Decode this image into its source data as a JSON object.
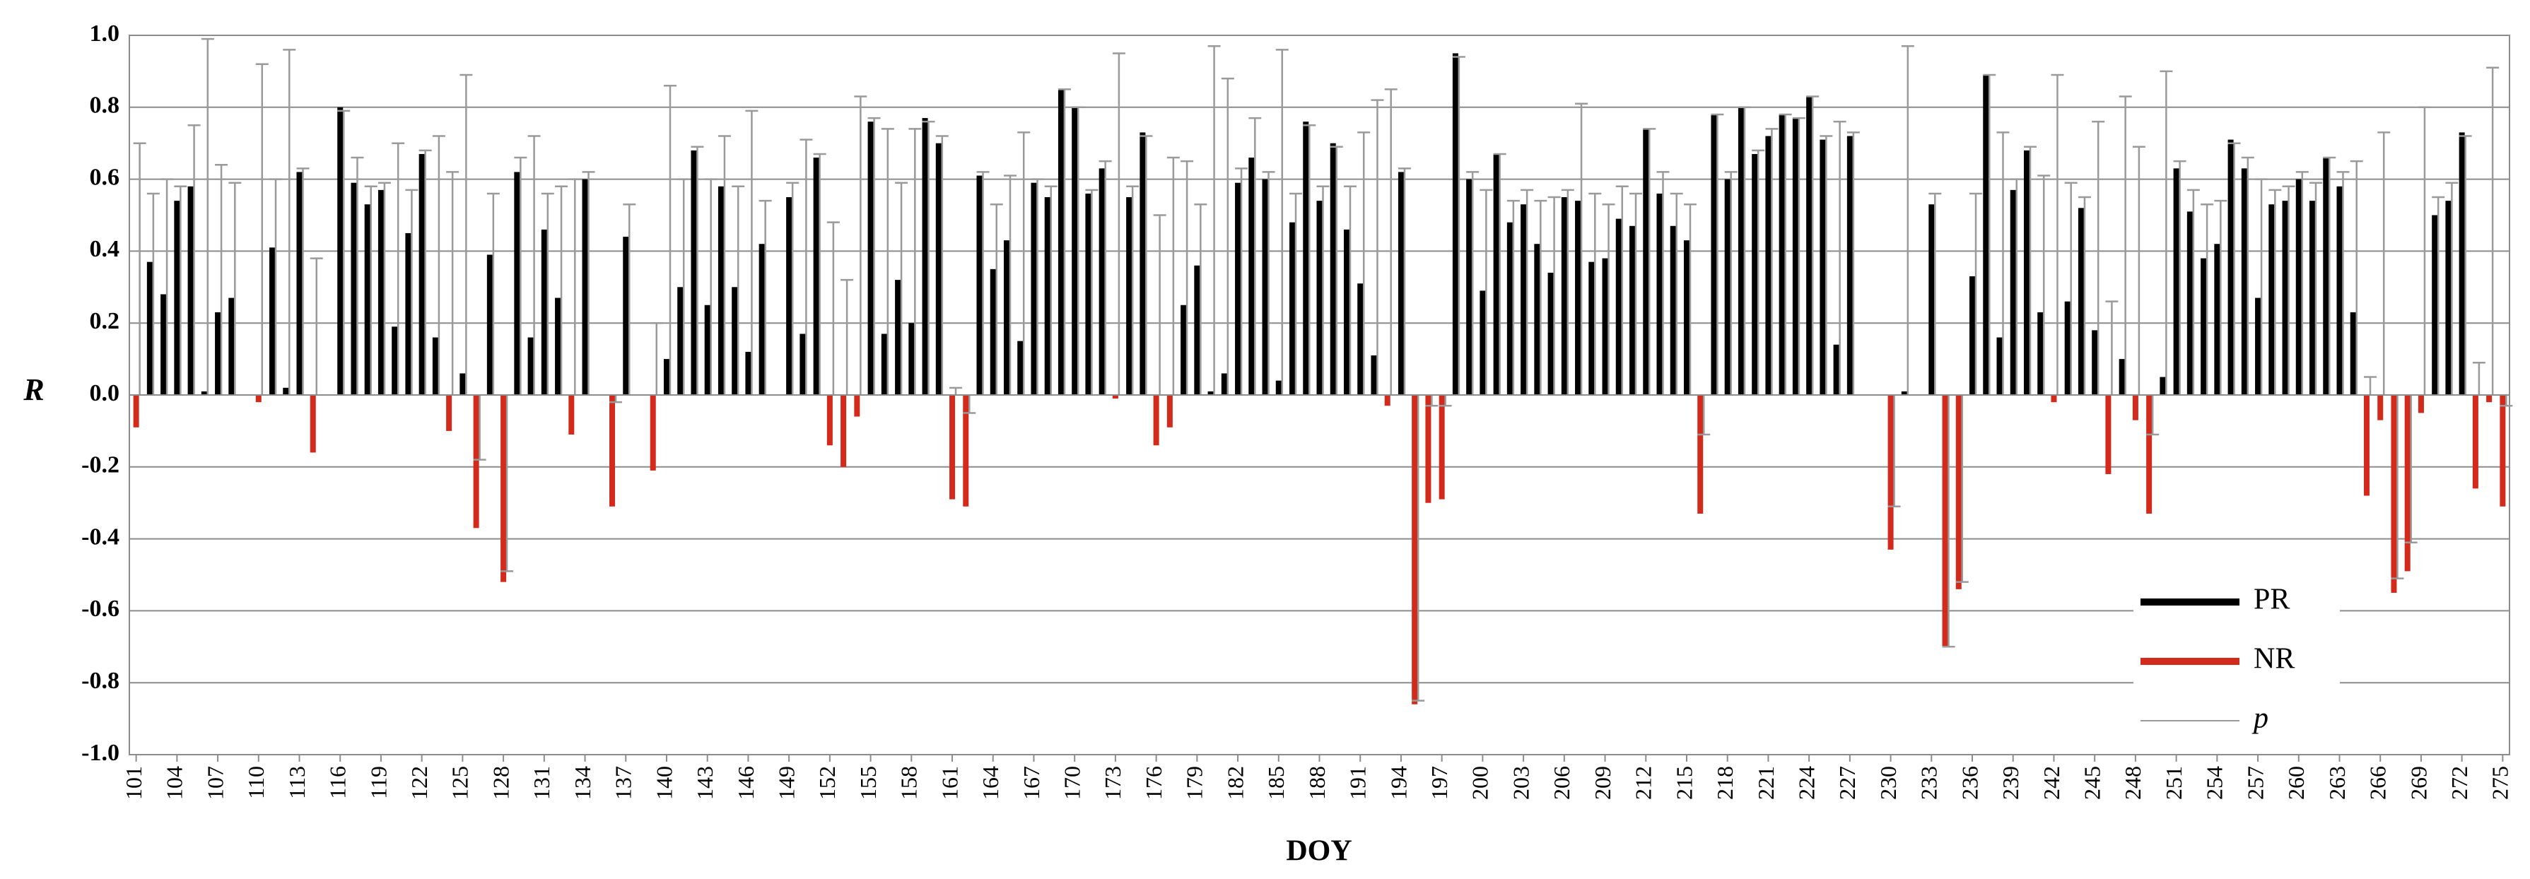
{
  "chart_data": {
    "type": "bar",
    "x_label": "DOY",
    "y_label": "R",
    "x": [
      101,
      102,
      103,
      104,
      105,
      106,
      107,
      108,
      109,
      110,
      111,
      112,
      113,
      114,
      115,
      116,
      117,
      118,
      119,
      120,
      121,
      122,
      123,
      124,
      125,
      126,
      127,
      128,
      129,
      130,
      131,
      132,
      133,
      134,
      135,
      136,
      137,
      138,
      139,
      140,
      141,
      142,
      143,
      144,
      145,
      146,
      147,
      148,
      149,
      150,
      151,
      152,
      153,
      154,
      155,
      156,
      157,
      158,
      159,
      160,
      161,
      162,
      163,
      164,
      165,
      166,
      167,
      168,
      169,
      170,
      171,
      172,
      173,
      174,
      175,
      176,
      177,
      178,
      179,
      180,
      181,
      182,
      183,
      184,
      185,
      186,
      187,
      188,
      189,
      190,
      191,
      192,
      193,
      194,
      195,
      196,
      197,
      198,
      199,
      200,
      201,
      202,
      203,
      204,
      205,
      206,
      207,
      208,
      209,
      210,
      211,
      212,
      213,
      214,
      215,
      216,
      217,
      218,
      219,
      220,
      221,
      222,
      223,
      224,
      225,
      226,
      227,
      228,
      229,
      230,
      231,
      232,
      233,
      234,
      235,
      236,
      237,
      238,
      239,
      240,
      241,
      242,
      243,
      244,
      245,
      246,
      247,
      248,
      249,
      250,
      251,
      252,
      253,
      254,
      255,
      256,
      257,
      258,
      259,
      260,
      261,
      262,
      263,
      264,
      265,
      266,
      267,
      268,
      269,
      270,
      271,
      272,
      273,
      274,
      275
    ],
    "xlim": [
      100.5,
      275.5
    ],
    "xticks": [
      101,
      104,
      107,
      110,
      113,
      116,
      119,
      122,
      125,
      128,
      131,
      134,
      137,
      140,
      143,
      146,
      149,
      152,
      155,
      158,
      161,
      164,
      167,
      170,
      173,
      176,
      179,
      182,
      185,
      188,
      191,
      194,
      197,
      200,
      203,
      206,
      209,
      212,
      215,
      218,
      221,
      224,
      227,
      230,
      233,
      236,
      239,
      242,
      245,
      248,
      251,
      254,
      257,
      260,
      263,
      266,
      269,
      272,
      275
    ],
    "ylim": [
      -1,
      1
    ],
    "yticks": [
      {
        "value": 1,
        "label": "1.0"
      },
      0.8,
      0.6,
      0.4,
      0.2,
      {
        "value": 0,
        "label": "0.0"
      },
      -0.2,
      -0.4,
      -0.6,
      -0.8,
      {
        "value": -1,
        "label": "-1.0"
      }
    ],
    "grid": true,
    "legend": "lower right",
    "series": [
      {
        "name": "PR",
        "color": "#000000",
        "values": [
          null,
          0.37,
          0.28,
          0.54,
          0.58,
          0.01,
          0.23,
          0.27,
          null,
          null,
          0.41,
          0.02,
          0.62,
          null,
          null,
          0.8,
          0.59,
          0.53,
          0.57,
          0.19,
          0.45,
          0.67,
          0.16,
          null,
          0.06,
          null,
          0.39,
          null,
          0.62,
          0.16,
          0.46,
          0.27,
          null,
          0.6,
          null,
          null,
          0.44,
          null,
          null,
          0.1,
          0.3,
          0.68,
          0.25,
          0.58,
          0.3,
          0.12,
          0.42,
          null,
          0.55,
          0.17,
          0.66,
          null,
          null,
          null,
          0.76,
          0.17,
          0.32,
          0.2,
          0.77,
          0.7,
          null,
          null,
          0.61,
          0.35,
          0.43,
          0.15,
          0.59,
          0.55,
          0.85,
          0.8,
          0.56,
          0.63,
          null,
          0.55,
          0.73,
          null,
          null,
          0.25,
          0.36,
          0.01,
          0.06,
          0.59,
          0.66,
          0.6,
          0.04,
          0.48,
          0.76,
          0.54,
          0.7,
          0.46,
          0.31,
          0.11,
          null,
          0.62,
          null,
          null,
          null,
          0.95,
          0.6,
          0.29,
          0.67,
          0.48,
          0.53,
          0.42,
          0.34,
          0.55,
          0.54,
          0.37,
          0.38,
          0.49,
          0.47,
          0.74,
          0.56,
          0.47,
          0.43,
          null,
          0.78,
          0.6,
          0.8,
          0.67,
          0.72,
          0.78,
          0.77,
          0.83,
          0.71,
          0.14,
          0.72,
          null,
          null,
          null,
          0.01,
          null,
          0.53,
          null,
          null,
          0.33,
          0.89,
          0.16,
          0.57,
          0.68,
          0.23,
          null,
          0.26,
          0.52,
          0.18,
          null,
          0.1,
          null,
          null,
          0.05,
          0.63,
          0.51,
          0.38,
          0.42,
          0.71,
          0.63,
          0.27,
          0.53,
          0.54,
          0.6,
          0.54,
          0.66,
          0.58,
          0.23,
          null,
          null,
          null,
          null,
          null,
          0.5,
          0.54,
          0.73,
          null,
          null,
          null
        ]
      },
      {
        "name": "NR",
        "color": "#d42a1c",
        "values": [
          -0.09,
          null,
          null,
          null,
          null,
          null,
          null,
          null,
          null,
          -0.02,
          null,
          null,
          null,
          -0.16,
          null,
          null,
          null,
          null,
          null,
          null,
          null,
          null,
          null,
          -0.1,
          null,
          -0.37,
          null,
          -0.52,
          null,
          null,
          null,
          null,
          -0.11,
          null,
          null,
          -0.31,
          null,
          null,
          -0.21,
          null,
          null,
          null,
          null,
          null,
          null,
          null,
          null,
          null,
          null,
          null,
          null,
          -0.14,
          -0.2,
          -0.06,
          null,
          null,
          null,
          null,
          null,
          null,
          -0.29,
          -0.31,
          null,
          null,
          null,
          null,
          null,
          null,
          null,
          null,
          null,
          null,
          -0.01,
          null,
          null,
          -0.14,
          -0.09,
          null,
          null,
          null,
          null,
          null,
          null,
          null,
          null,
          null,
          null,
          null,
          null,
          null,
          null,
          null,
          -0.03,
          null,
          -0.86,
          -0.3,
          -0.29,
          null,
          null,
          null,
          null,
          null,
          null,
          null,
          null,
          null,
          null,
          null,
          null,
          null,
          null,
          null,
          null,
          null,
          null,
          -0.33,
          null,
          null,
          null,
          null,
          null,
          null,
          null,
          null,
          null,
          null,
          null,
          null,
          null,
          -0.43,
          null,
          null,
          null,
          -0.7,
          -0.54,
          null,
          null,
          null,
          null,
          null,
          null,
          -0.02,
          null,
          null,
          null,
          -0.22,
          null,
          -0.07,
          -0.33,
          null,
          null,
          null,
          null,
          null,
          null,
          null,
          null,
          null,
          null,
          null,
          null,
          null,
          null,
          null,
          -0.28,
          -0.07,
          -0.55,
          -0.49,
          -0.05,
          null,
          null,
          null,
          -0.26,
          -0.02,
          -0.31
        ]
      },
      {
        "name": "p",
        "color": "#9a9a9a",
        "values": [
          0.7,
          0.56,
          0.6,
          0.58,
          0.75,
          0.99,
          0.64,
          0.59,
          null,
          0.92,
          0.6,
          0.96,
          0.63,
          0.38,
          null,
          0.79,
          0.66,
          0.58,
          0.59,
          0.7,
          0.57,
          0.68,
          0.72,
          0.62,
          0.89,
          -0.18,
          0.56,
          -0.49,
          0.66,
          0.72,
          0.56,
          0.58,
          0.6,
          0.62,
          null,
          -0.02,
          0.53,
          null,
          0.2,
          0.86,
          0.6,
          0.69,
          0.6,
          0.72,
          0.58,
          0.79,
          0.54,
          null,
          0.59,
          0.71,
          0.67,
          0.48,
          0.32,
          0.83,
          0.77,
          0.74,
          0.59,
          0.74,
          0.76,
          0.72,
          0.02,
          -0.05,
          0.62,
          0.53,
          0.61,
          0.73,
          0.6,
          0.58,
          0.85,
          0.8,
          0.57,
          0.65,
          0.95,
          0.58,
          0.72,
          0.5,
          0.66,
          0.65,
          0.53,
          0.97,
          0.88,
          0.63,
          0.77,
          0.62,
          0.96,
          0.56,
          0.75,
          0.58,
          0.69,
          0.58,
          0.73,
          0.82,
          0.85,
          0.63,
          -0.85,
          -0.03,
          -0.03,
          0.94,
          0.62,
          0.57,
          0.67,
          0.54,
          0.57,
          0.54,
          0.55,
          0.57,
          0.81,
          0.56,
          0.53,
          0.58,
          0.56,
          0.74,
          0.62,
          0.56,
          0.53,
          -0.11,
          0.78,
          0.62,
          0.8,
          0.68,
          0.74,
          0.78,
          0.77,
          0.83,
          0.72,
          0.76,
          0.73,
          null,
          null,
          -0.31,
          0.97,
          null,
          0.56,
          -0.7,
          -0.52,
          0.56,
          0.89,
          0.73,
          0.6,
          0.69,
          0.61,
          0.89,
          0.59,
          0.55,
          0.76,
          0.26,
          0.83,
          0.69,
          -0.11,
          0.9,
          0.65,
          0.57,
          0.53,
          0.54,
          0.7,
          0.66,
          0.6,
          0.57,
          0.58,
          0.62,
          0.59,
          0.66,
          0.62,
          0.65,
          0.05,
          0.73,
          -0.51,
          -0.41,
          0.8,
          0.55,
          0.59,
          0.72,
          0.09,
          0.91,
          -0.03
        ]
      }
    ]
  }
}
